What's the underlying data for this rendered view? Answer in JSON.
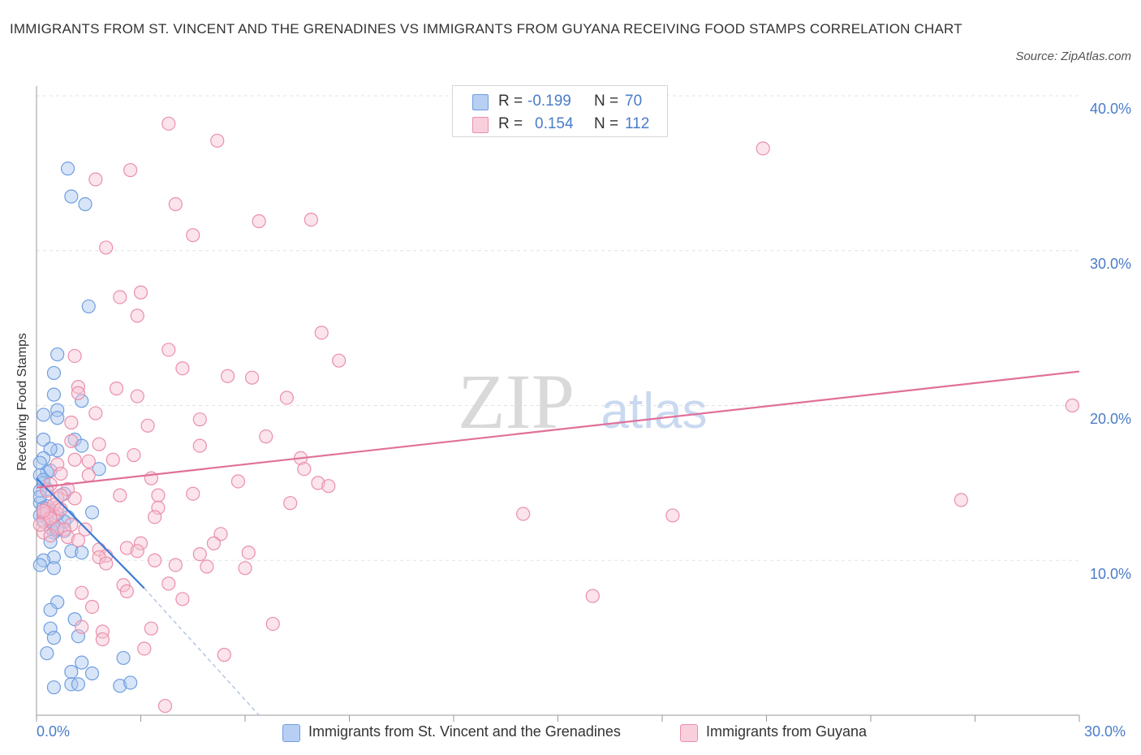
{
  "chart_data": {
    "type": "scatter",
    "title": "IMMIGRANTS FROM ST. VINCENT AND THE GRENADINES VS IMMIGRANTS FROM GUYANA RECEIVING FOOD STAMPS CORRELATION CHART",
    "source": "Source: ZipAtlas.com",
    "ylabel": "Receiving Food Stamps",
    "xlabel": "",
    "xlim": [
      0,
      30
    ],
    "ylim": [
      0,
      40
    ],
    "x_tick_labels": {
      "min": "0.0%",
      "max": "30.0%"
    },
    "y_ticks": [
      {
        "value": 10,
        "label": "10.0%"
      },
      {
        "value": 20,
        "label": "20.0%"
      },
      {
        "value": 30,
        "label": "30.0%"
      },
      {
        "value": 40,
        "label": "40.0%"
      }
    ],
    "watermark": {
      "zip": "ZIP",
      "atlas": "atlas"
    },
    "legend_stats": [
      {
        "r_label": "R =",
        "r_value": "-0.199",
        "n_label": "N =",
        "n_value": "70"
      },
      {
        "r_label": "R =",
        "r_value": "0.154",
        "n_label": "N =",
        "n_value": "112"
      }
    ],
    "series": [
      {
        "name": "Immigrants from St. Vincent and the Grenadines",
        "color": "#6f9ee0",
        "fill": "#a9c6ef",
        "trend": {
          "x0": 0.0,
          "y0": 15.3,
          "x1": 3.1,
          "y1": 8.2,
          "dash_to_x": 6.4,
          "dash_to_y": 0.0
        },
        "points": [
          [
            0.9,
            35.3
          ],
          [
            1.0,
            33.5
          ],
          [
            1.4,
            33.0
          ],
          [
            1.5,
            26.4
          ],
          [
            0.6,
            23.3
          ],
          [
            0.5,
            22.1
          ],
          [
            0.5,
            20.7
          ],
          [
            0.6,
            19.7
          ],
          [
            0.2,
            19.4
          ],
          [
            0.6,
            19.2
          ],
          [
            1.3,
            20.3
          ],
          [
            0.2,
            17.8
          ],
          [
            0.6,
            17.1
          ],
          [
            0.4,
            17.2
          ],
          [
            1.1,
            17.8
          ],
          [
            1.3,
            17.4
          ],
          [
            0.2,
            16.6
          ],
          [
            0.1,
            16.3
          ],
          [
            0.3,
            15.7
          ],
          [
            0.4,
            15.8
          ],
          [
            0.1,
            15.5
          ],
          [
            0.2,
            15.0
          ],
          [
            0.3,
            14.6
          ],
          [
            0.1,
            14.5
          ],
          [
            0.8,
            14.3
          ],
          [
            0.1,
            13.7
          ],
          [
            0.2,
            13.4
          ],
          [
            0.3,
            13.1
          ],
          [
            0.4,
            13.2
          ],
          [
            0.3,
            12.7
          ],
          [
            0.2,
            12.6
          ],
          [
            0.1,
            12.9
          ],
          [
            0.5,
            12.3
          ],
          [
            0.4,
            12.1
          ],
          [
            0.5,
            11.8
          ],
          [
            0.8,
            11.9
          ],
          [
            0.6,
            12.0
          ],
          [
            1.6,
            13.1
          ],
          [
            0.9,
            12.8
          ],
          [
            0.4,
            11.2
          ],
          [
            1.0,
            10.6
          ],
          [
            1.3,
            10.5
          ],
          [
            0.5,
            10.2
          ],
          [
            0.2,
            10.0
          ],
          [
            0.1,
            9.7
          ],
          [
            0.5,
            9.5
          ],
          [
            0.6,
            7.3
          ],
          [
            0.4,
            6.8
          ],
          [
            1.1,
            6.2
          ],
          [
            0.4,
            5.6
          ],
          [
            0.5,
            5.0
          ],
          [
            1.2,
            5.1
          ],
          [
            0.3,
            4.0
          ],
          [
            2.5,
            3.7
          ],
          [
            1.3,
            3.4
          ],
          [
            1.0,
            2.8
          ],
          [
            1.6,
            2.7
          ],
          [
            0.5,
            1.8
          ],
          [
            1.0,
            2.0
          ],
          [
            1.2,
            2.0
          ],
          [
            2.4,
            1.9
          ],
          [
            2.7,
            2.1
          ],
          [
            1.8,
            15.9
          ],
          [
            0.2,
            15.2
          ],
          [
            0.3,
            13.5
          ],
          [
            0.8,
            12.5
          ],
          [
            0.1,
            14.1
          ],
          [
            0.6,
            13.0
          ],
          [
            0.3,
            12.9
          ],
          [
            0.2,
            13.0
          ]
        ]
      },
      {
        "name": "Immigrants from Guyana",
        "color": "#ea8fab",
        "fill": "#f6c3d3",
        "trend": {
          "x0": 0.0,
          "y0": 14.7,
          "x1": 30.0,
          "y1": 22.2
        },
        "points": [
          [
            3.8,
            38.2
          ],
          [
            5.2,
            37.1
          ],
          [
            20.9,
            36.6
          ],
          [
            2.7,
            35.2
          ],
          [
            1.7,
            34.6
          ],
          [
            4.0,
            33.0
          ],
          [
            6.4,
            31.9
          ],
          [
            7.9,
            32.0
          ],
          [
            4.5,
            31.0
          ],
          [
            2.0,
            30.2
          ],
          [
            3.0,
            27.3
          ],
          [
            2.4,
            27.0
          ],
          [
            2.9,
            25.8
          ],
          [
            8.2,
            24.7
          ],
          [
            3.8,
            23.6
          ],
          [
            1.1,
            23.2
          ],
          [
            8.7,
            22.9
          ],
          [
            4.2,
            22.4
          ],
          [
            5.5,
            21.9
          ],
          [
            6.2,
            21.8
          ],
          [
            1.2,
            21.2
          ],
          [
            2.3,
            21.1
          ],
          [
            1.2,
            20.8
          ],
          [
            2.9,
            20.6
          ],
          [
            7.2,
            20.5
          ],
          [
            1.7,
            19.5
          ],
          [
            4.7,
            19.1
          ],
          [
            3.2,
            18.7
          ],
          [
            1.0,
            18.9
          ],
          [
            6.6,
            18.0
          ],
          [
            1.8,
            17.5
          ],
          [
            4.7,
            17.4
          ],
          [
            1.0,
            17.7
          ],
          [
            2.8,
            16.8
          ],
          [
            1.1,
            16.5
          ],
          [
            1.5,
            16.4
          ],
          [
            0.6,
            16.2
          ],
          [
            7.6,
            16.6
          ],
          [
            7.7,
            15.9
          ],
          [
            2.2,
            16.5
          ],
          [
            0.7,
            15.6
          ],
          [
            3.3,
            15.3
          ],
          [
            5.8,
            15.1
          ],
          [
            8.1,
            15.0
          ],
          [
            8.4,
            14.8
          ],
          [
            1.5,
            15.5
          ],
          [
            0.9,
            14.6
          ],
          [
            0.6,
            14.0
          ],
          [
            0.7,
            14.2
          ],
          [
            1.1,
            14.0
          ],
          [
            2.4,
            14.2
          ],
          [
            3.5,
            14.2
          ],
          [
            4.5,
            14.3
          ],
          [
            7.3,
            13.7
          ],
          [
            26.6,
            13.9
          ],
          [
            0.3,
            13.3
          ],
          [
            0.6,
            13.4
          ],
          [
            3.5,
            13.4
          ],
          [
            0.2,
            13.0
          ],
          [
            0.4,
            12.8
          ],
          [
            0.5,
            12.9
          ],
          [
            14.0,
            13.0
          ],
          [
            18.3,
            12.9
          ],
          [
            3.4,
            12.8
          ],
          [
            1.0,
            12.3
          ],
          [
            0.6,
            12.1
          ],
          [
            0.2,
            11.8
          ],
          [
            1.4,
            12.0
          ],
          [
            0.8,
            12.0
          ],
          [
            5.3,
            11.7
          ],
          [
            0.9,
            11.5
          ],
          [
            0.4,
            11.6
          ],
          [
            1.2,
            11.3
          ],
          [
            3.0,
            11.1
          ],
          [
            5.1,
            11.1
          ],
          [
            2.6,
            10.8
          ],
          [
            1.8,
            10.7
          ],
          [
            2.9,
            10.6
          ],
          [
            6.1,
            10.5
          ],
          [
            2.0,
            10.3
          ],
          [
            4.7,
            10.4
          ],
          [
            1.8,
            10.2
          ],
          [
            3.4,
            10.0
          ],
          [
            2.0,
            9.8
          ],
          [
            4.0,
            9.7
          ],
          [
            4.9,
            9.6
          ],
          [
            6.0,
            9.5
          ],
          [
            3.8,
            8.5
          ],
          [
            2.5,
            8.4
          ],
          [
            2.6,
            8.0
          ],
          [
            1.3,
            7.9
          ],
          [
            16.0,
            7.7
          ],
          [
            4.2,
            7.5
          ],
          [
            1.6,
            7.0
          ],
          [
            6.8,
            5.9
          ],
          [
            1.3,
            5.7
          ],
          [
            3.3,
            5.6
          ],
          [
            1.9,
            5.4
          ],
          [
            1.9,
            4.9
          ],
          [
            3.1,
            4.3
          ],
          [
            5.4,
            3.9
          ],
          [
            3.7,
            0.6
          ],
          [
            29.8,
            20.0
          ],
          [
            0.3,
            14.5
          ],
          [
            0.5,
            13.6
          ],
          [
            0.2,
            12.5
          ],
          [
            0.3,
            13.1
          ],
          [
            0.4,
            12.7
          ],
          [
            0.2,
            13.2
          ],
          [
            0.1,
            12.3
          ],
          [
            0.4,
            14.9
          ],
          [
            0.7,
            13.3
          ]
        ]
      }
    ]
  }
}
